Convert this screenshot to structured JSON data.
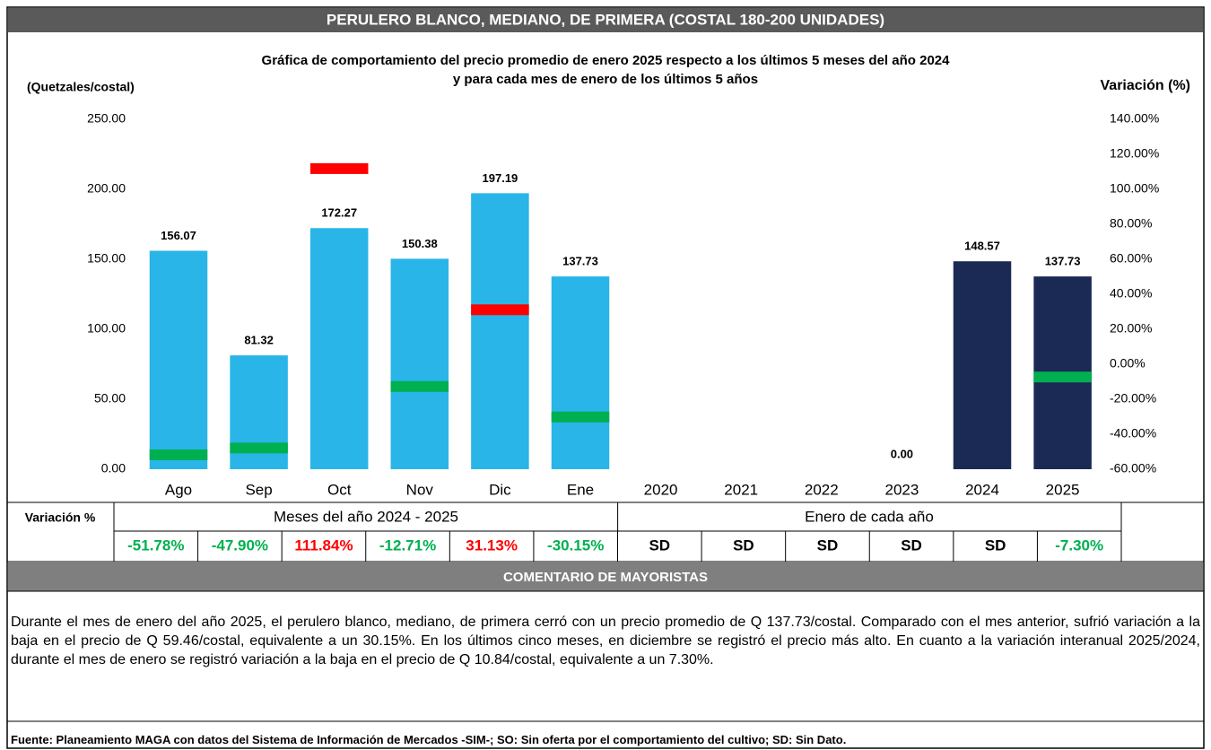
{
  "header": {
    "title": "PERULERO BLANCO, MEDIANO, DE PRIMERA (COSTAL 180-200 UNIDADES)"
  },
  "chart_data": {
    "type": "bar",
    "title": [
      "Gráfica de comportamiento del precio promedio de enero 2025 respecto a los últimos 5 meses del año 2024",
      "y para cada mes de enero de los últimos 5 años"
    ],
    "y_label": "(Quetzales/costal)",
    "y2_label": "Variación (%)",
    "categories": [
      "Ago",
      "Sep",
      "Oct",
      "Nov",
      "Dic",
      "Ene",
      "2020",
      "2021",
      "2022",
      "2023",
      "2024",
      "2025"
    ],
    "series": [
      {
        "name": "Precio",
        "values": [
          156.07,
          81.32,
          172.27,
          150.38,
          197.19,
          137.73,
          null,
          null,
          null,
          0,
          148.57,
          137.73
        ],
        "value_labels": [
          "156.07",
          "81.32",
          "172.27",
          "150.38",
          "197.19",
          "137.73",
          null,
          null,
          null,
          "0.00",
          "148.57",
          "137.73"
        ],
        "colors": [
          "#29b5e8",
          "#29b5e8",
          "#29b5e8",
          "#29b5e8",
          "#29b5e8",
          "#29b5e8",
          "#1b2a55",
          "#1b2a55",
          "#1b2a55",
          "#1b2a55",
          "#1b2a55",
          "#1b2a55"
        ]
      },
      {
        "name": "Variación %",
        "axis": "y2",
        "values": [
          -51.78,
          -47.9,
          111.84,
          -12.71,
          31.13,
          -30.15,
          null,
          null,
          null,
          null,
          null,
          -7.3
        ],
        "value_labels": [
          "-51.78%",
          "-47.90%",
          "111.84%",
          "-12.71%",
          "31.13%",
          "-30.15%",
          "SD",
          "SD",
          "SD",
          "SD",
          "SD",
          "-7.30%"
        ],
        "colors": [
          "#00b050",
          "#00b050",
          "#ff0000",
          "#00b050",
          "#ff0000",
          "#00b050",
          "#000000",
          "#000000",
          "#000000",
          "#000000",
          "#000000",
          "#00b050"
        ]
      }
    ],
    "ylim": [
      0,
      250
    ],
    "yticks": [
      {
        "value": 0,
        "label": "0.00"
      },
      {
        "value": 50,
        "label": "50.00"
      },
      {
        "value": 100,
        "label": "100.00"
      },
      {
        "value": 150,
        "label": "150.00"
      },
      {
        "value": 200,
        "label": "200.00"
      },
      {
        "value": 250,
        "label": "250.00"
      }
    ],
    "y2lim": [
      -60,
      140
    ],
    "y2ticks": [
      {
        "value": -60,
        "label": "-60.00%"
      },
      {
        "value": -40,
        "label": "-40.00%"
      },
      {
        "value": -20,
        "label": "-20.00%"
      },
      {
        "value": 0,
        "label": "0.00%"
      },
      {
        "value": 20,
        "label": "20.00%"
      },
      {
        "value": 40,
        "label": "40.00%"
      },
      {
        "value": 60,
        "label": "60.00%"
      },
      {
        "value": 80,
        "label": "80.00%"
      },
      {
        "value": 100,
        "label": "100.00%"
      },
      {
        "value": 120,
        "label": "120.00%"
      },
      {
        "value": 140,
        "label": "140.00%"
      }
    ]
  },
  "table": {
    "row_label": "Variación %",
    "groups": [
      "Meses del año  2024 - 2025",
      "Enero de cada año"
    ]
  },
  "comment": {
    "title": "COMENTARIO DE MAYORISTAS",
    "text": "Durante el mes de enero del año 2025, el perulero blanco, mediano, de primera cerró con un precio promedio de Q 137.73/costal. Comparado con el mes anterior, sufrió variación a la baja en el precio de Q 59.46/costal, equivalente a un 30.15%. En los últimos cinco meses, en diciembre se registró el precio más alto. En cuanto a la variación interanual 2025/2024, durante el mes de enero se registró variación a la baja en el precio de Q 10.84/costal, equivalente a un 7.30%."
  },
  "footer": "Fuente: Planeamiento MAGA con datos del  Sistema de Información de Mercados -SIM-; SO: Sin oferta por el comportamiento del cultivo; SD: Sin Dato."
}
